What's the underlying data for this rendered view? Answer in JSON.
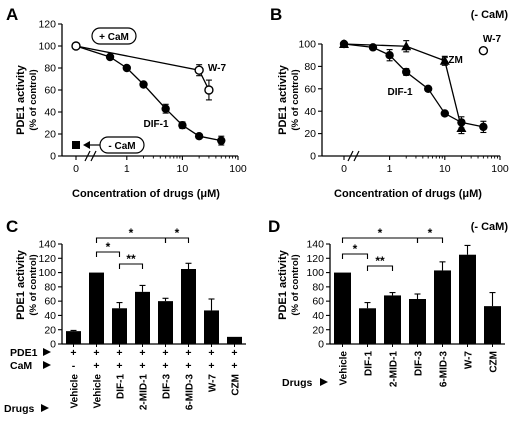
{
  "figure": {
    "panels": {
      "A": {
        "letter": "A",
        "ylabel": "PDE1 activity",
        "ylabel_sub": "(% of control)",
        "xlabel": "Concentration of drugs (μM)"
      },
      "B": {
        "letter": "B",
        "ylabel": "PDE1 activity",
        "ylabel_sub": "(% of control)",
        "xlabel": "Concentration of drugs (μM)",
        "note": "(- CaM)"
      },
      "C": {
        "letter": "C",
        "ylabel": "PDE1 activity",
        "ylabel_sub": "(% of control)"
      },
      "D": {
        "letter": "D",
        "ylabel": "PDE1 activity",
        "ylabel_sub": "(% of control)",
        "note": "(- CaM)"
      }
    }
  },
  "chart_data": [
    {
      "panel": "A",
      "type": "line",
      "xlabel": "Concentration of drugs (μM)",
      "ylabel": "PDE1 activity (% of control)",
      "x_scale": "log with broken axis at 0",
      "xticks": [
        "0",
        "1",
        "10",
        "100"
      ],
      "ylim": [
        0,
        120
      ],
      "yticks": [
        0,
        20,
        40,
        60,
        80,
        100,
        120
      ],
      "series": [
        {
          "name": "DIF-1",
          "marker": "filled circle",
          "x": [
            0,
            0.5,
            1,
            2,
            5,
            10,
            20,
            50
          ],
          "y": [
            100,
            90,
            80,
            65,
            43,
            28,
            18,
            14
          ],
          "err": [
            0,
            0,
            0,
            0,
            4,
            3,
            2,
            4
          ]
        },
        {
          "name": "W-7",
          "marker": "open circle",
          "x": [
            0,
            20,
            30
          ],
          "y": [
            100,
            78,
            60
          ],
          "err": [
            0,
            5,
            9
          ]
        }
      ],
      "annotations": [
        {
          "text": "+ CaM",
          "boxed": true
        },
        {
          "text": "- CaM",
          "boxed": true,
          "arrow": "left",
          "point": {
            "x": 0,
            "y": 10,
            "marker": "filled square"
          }
        }
      ]
    },
    {
      "panel": "B",
      "type": "line",
      "note": "(- CaM)",
      "xlabel": "Concentration of drugs (μM)",
      "ylabel": "PDE1 activity (% of control)",
      "x_scale": "log with broken axis at 0",
      "xticks": [
        "0",
        "1",
        "10",
        "100"
      ],
      "ylim": [
        0,
        100
      ],
      "yticks": [
        0,
        20,
        40,
        60,
        80,
        100
      ],
      "series": [
        {
          "name": "DIF-1",
          "marker": "filled circle",
          "x": [
            0,
            0.5,
            1,
            2,
            5,
            10,
            20,
            50
          ],
          "y": [
            100,
            97,
            90,
            75,
            60,
            38,
            30,
            26
          ],
          "err": [
            0,
            0,
            5,
            3,
            0,
            2,
            5,
            5
          ]
        },
        {
          "name": "CZM",
          "marker": "filled triangle",
          "x": [
            0,
            2,
            10,
            20
          ],
          "y": [
            100,
            98,
            85,
            25
          ],
          "err": [
            0,
            5,
            4,
            5
          ]
        },
        {
          "name": "W-7",
          "marker": "open circle",
          "x": [
            50
          ],
          "y": [
            94
          ],
          "err": [
            0
          ]
        }
      ]
    },
    {
      "panel": "C",
      "type": "bar",
      "ylabel": "PDE1 activity (% of control)",
      "ylim": [
        0,
        140
      ],
      "yticks": [
        0,
        20,
        40,
        60,
        80,
        100,
        120,
        140
      ],
      "categories": [
        "Vehicle",
        "Vehicle",
        "DIF-1",
        "2-MID-1",
        "DIF-3",
        "6-MID-3",
        "W-7",
        "CZM"
      ],
      "values": [
        18,
        100,
        50,
        73,
        60,
        105,
        47,
        10
      ],
      "errors": [
        1,
        0,
        8,
        9,
        4,
        8,
        16,
        0
      ],
      "rows": [
        {
          "label": "PDE1",
          "values": [
            "+",
            "+",
            "+",
            "+",
            "+",
            "+",
            "+",
            "+"
          ]
        },
        {
          "label": "CaM",
          "values": [
            "-",
            "+",
            "+",
            "+",
            "+",
            "+",
            "+",
            "+"
          ]
        },
        {
          "label": "Drugs",
          "values": []
        }
      ],
      "significance": [
        {
          "from": 1,
          "to": 2,
          "label": "*"
        },
        {
          "from": 1,
          "to": 4,
          "label": "*"
        },
        {
          "from": 4,
          "to": 5,
          "label": "*"
        },
        {
          "from": 2,
          "to": 3,
          "label": "**"
        }
      ]
    },
    {
      "panel": "D",
      "type": "bar",
      "note": "(- CaM)",
      "ylabel": "PDE1 activity (% of control)",
      "ylim": [
        0,
        140
      ],
      "yticks": [
        0,
        20,
        40,
        60,
        80,
        100,
        120,
        140
      ],
      "categories": [
        "Vehicle",
        "DIF-1",
        "2-MID-1",
        "DIF-3",
        "6-MID-3",
        "W-7",
        "CZM"
      ],
      "values": [
        100,
        50,
        68,
        63,
        103,
        125,
        53
      ],
      "errors": [
        0,
        8,
        4,
        7,
        12,
        13,
        19
      ],
      "rows": [
        {
          "label": "Drugs",
          "values": []
        }
      ],
      "significance": [
        {
          "from": 0,
          "to": 1,
          "label": "*"
        },
        {
          "from": 0,
          "to": 3,
          "label": "*"
        },
        {
          "from": 3,
          "to": 4,
          "label": "*"
        },
        {
          "from": 1,
          "to": 2,
          "label": "**"
        }
      ]
    }
  ]
}
